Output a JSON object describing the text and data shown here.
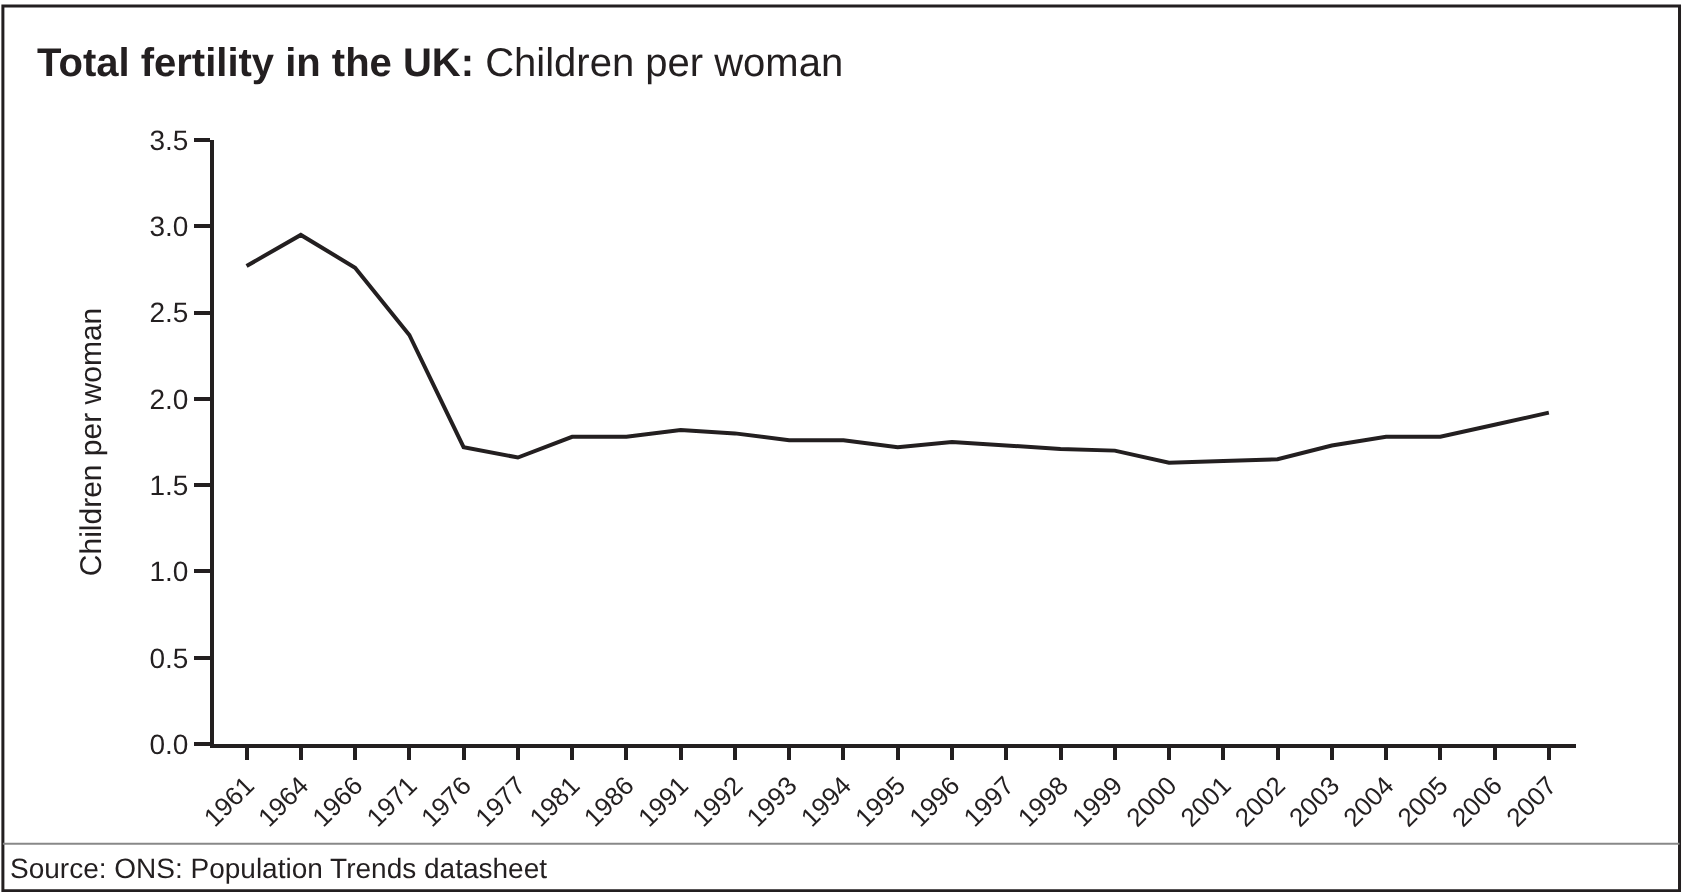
{
  "chart_data": {
    "type": "line",
    "title": "Total fertility in the UK:",
    "subtitle": "Children per woman",
    "ylabel": "Children per woman",
    "categories": [
      "1961",
      "1964",
      "1966",
      "1971",
      "1976",
      "1977",
      "1981",
      "1986",
      "1991",
      "1992",
      "1993",
      "1994",
      "1995",
      "1996",
      "1997",
      "1998",
      "1999",
      "2000",
      "2001",
      "2002",
      "2003",
      "2004",
      "2005",
      "2006",
      "2007"
    ],
    "series": [
      {
        "color": "#231f20",
        "values": [
          2.77,
          2.95,
          2.76,
          2.37,
          1.72,
          1.66,
          1.78,
          1.78,
          1.82,
          1.8,
          1.76,
          1.76,
          1.72,
          1.75,
          1.73,
          1.71,
          1.7,
          1.63,
          1.64,
          1.65,
          1.73,
          1.78,
          1.78,
          1.85,
          1.92
        ]
      }
    ],
    "ylim": [
      0,
      3.5
    ],
    "yticks": [
      {
        "value": 0,
        "label": "0.0"
      },
      0.5,
      {
        "value": 1,
        "label": "1.0"
      },
      1.5,
      {
        "value": 2,
        "label": "2.0"
      },
      2.5,
      {
        "value": 3,
        "label": "3.0"
      },
      3.5
    ],
    "annotations": [
      "Source: ONS: Population Trends datasheet"
    ],
    "grid": false,
    "marker": "none",
    "line_style": "solid"
  }
}
